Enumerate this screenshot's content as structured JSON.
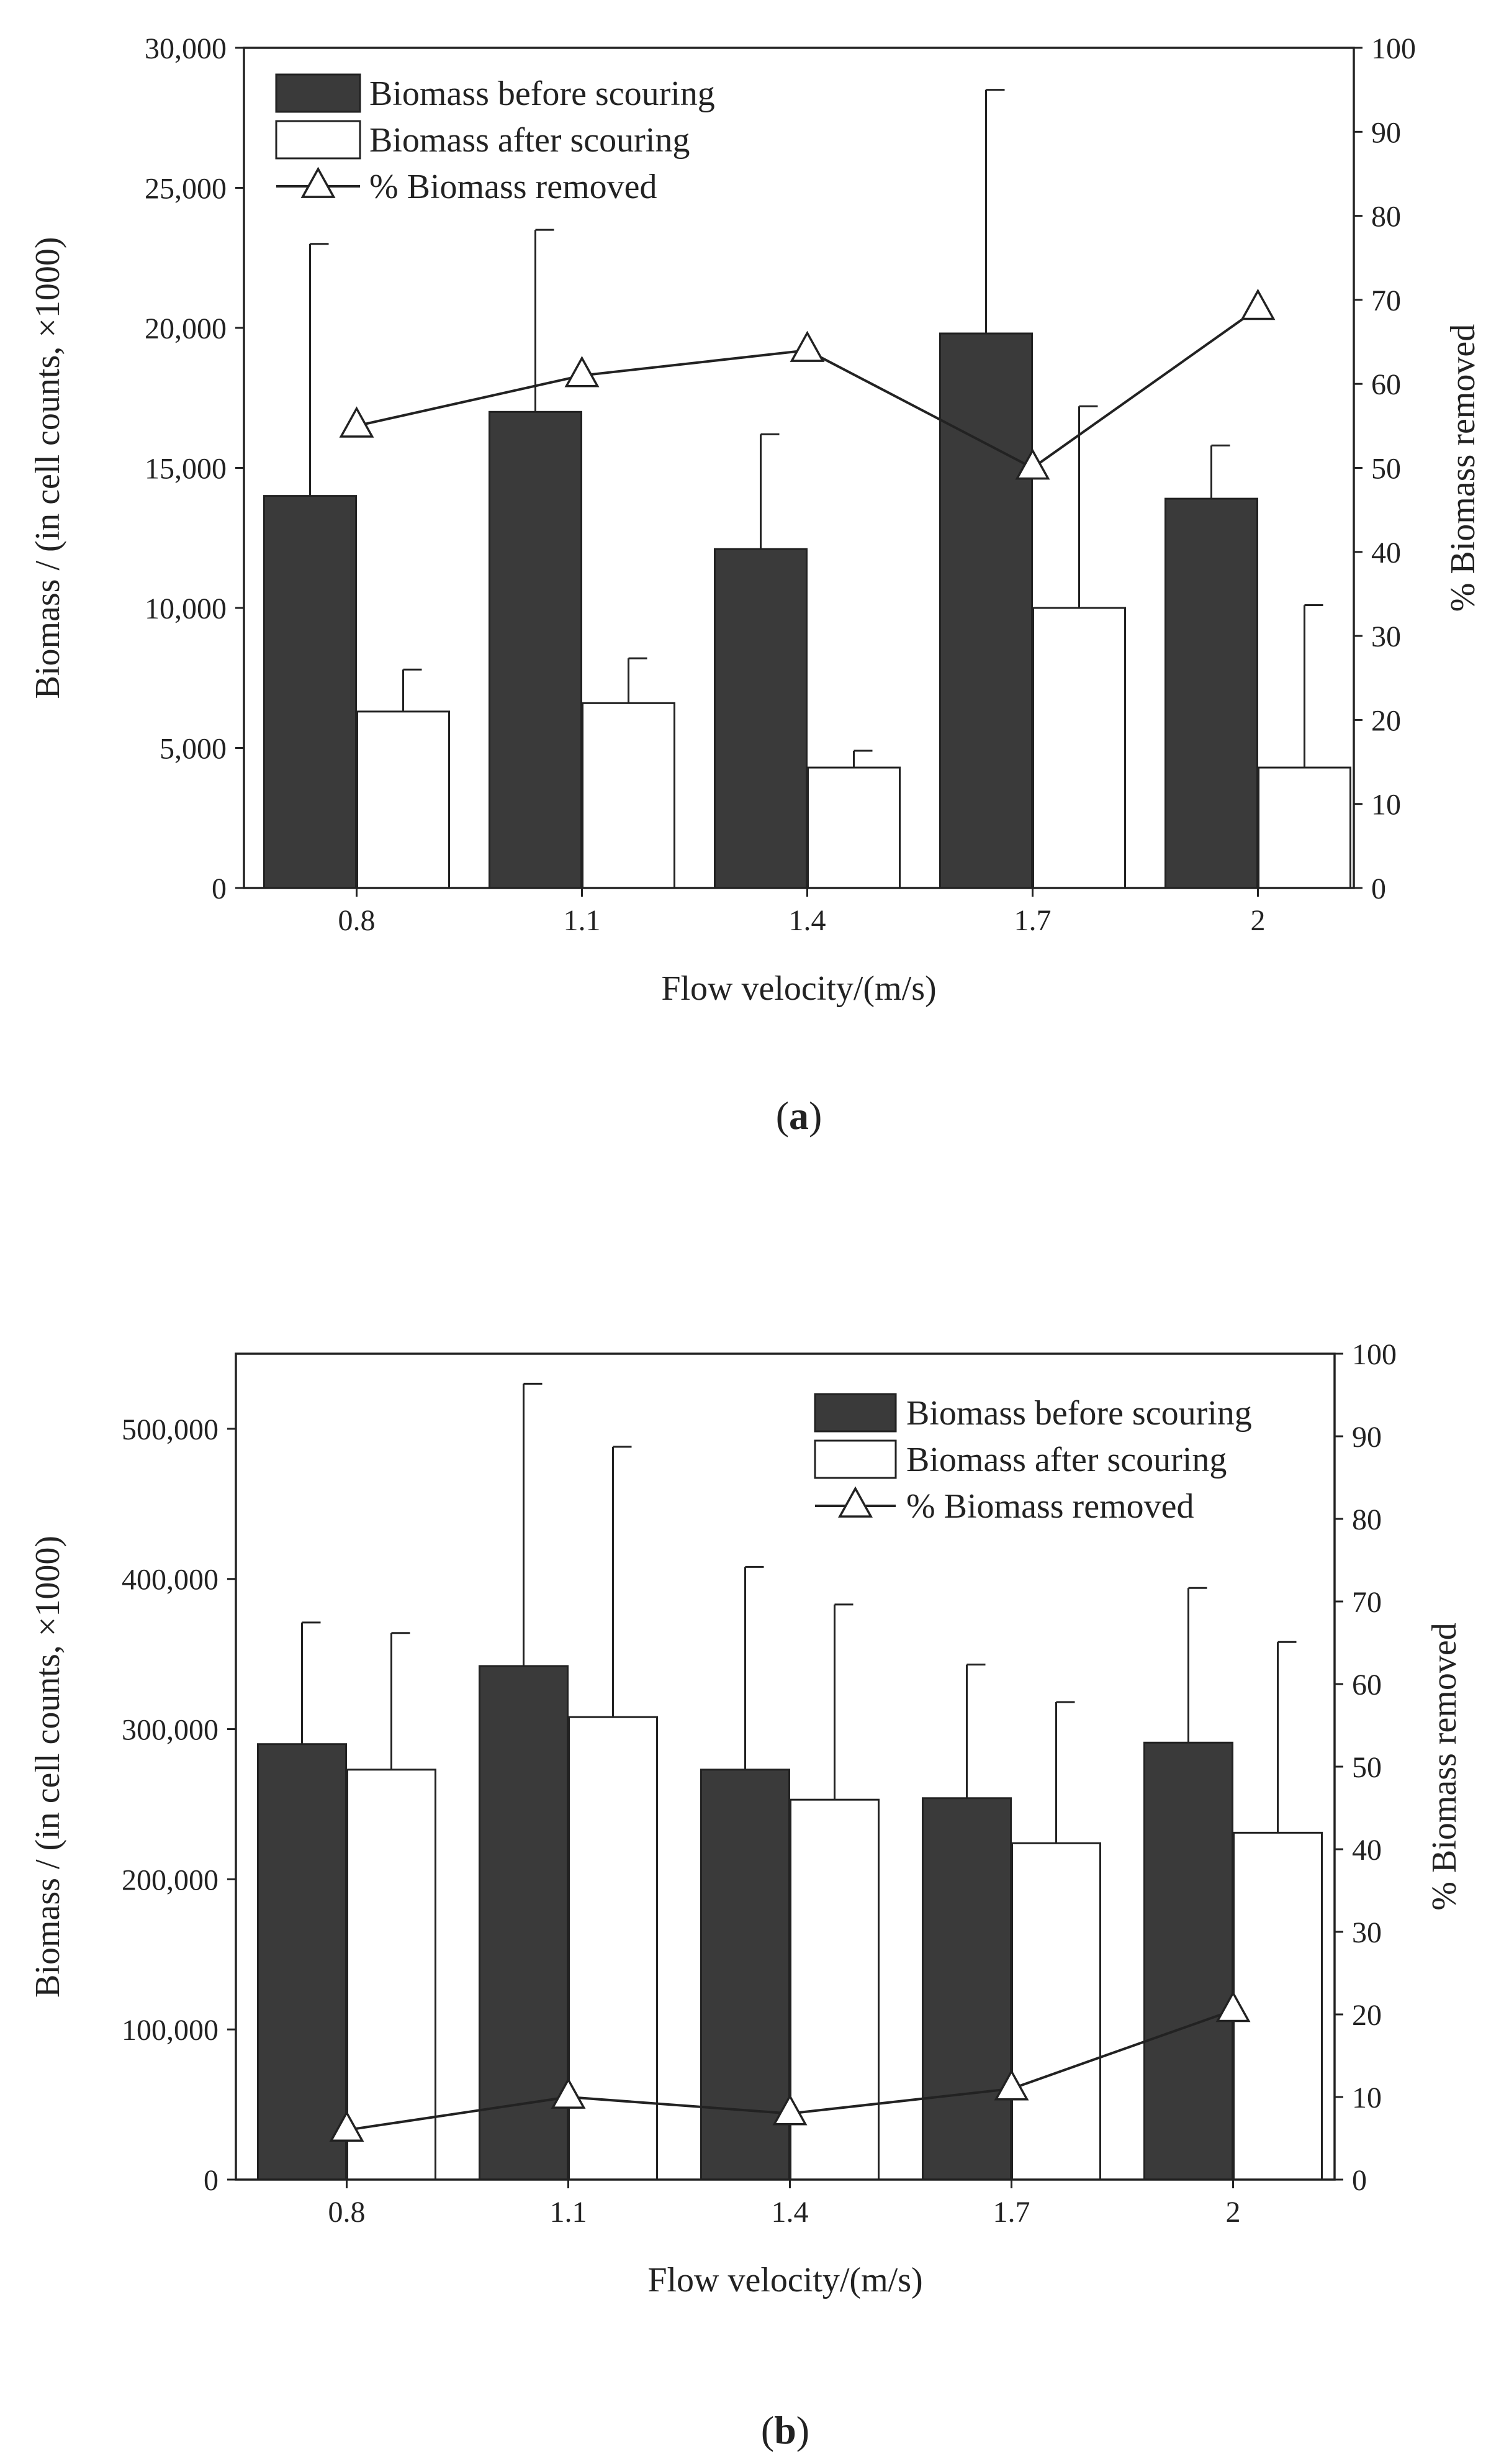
{
  "colors": {
    "before": "#3a3a3a",
    "after": "#ffffff",
    "stroke": "#222222"
  },
  "chart_data": [
    {
      "type": "bar",
      "caption": "(a)",
      "caption_letter": "a",
      "categories": [
        "0.8",
        "1.1",
        "1.4",
        "1.7",
        "2"
      ],
      "series": [
        {
          "name": "Biomass before scouring",
          "values": [
            14000,
            17000,
            12100,
            19800,
            13900
          ],
          "errors": [
            9000,
            6500,
            4100,
            8700,
            1900
          ]
        },
        {
          "name": "Biomass after scouring",
          "values": [
            6300,
            6600,
            4300,
            10000,
            4300
          ],
          "errors": [
            1500,
            1600,
            600,
            7200,
            5800
          ]
        },
        {
          "name": "% Biomass removed",
          "axis": "right",
          "values": [
            55,
            61,
            64,
            50,
            69
          ]
        }
      ],
      "legend_marker_line": "—△—",
      "xlabel": "Flow velocity/(m/s)",
      "ylabel": "Biomass / (in cell counts, ×1000)",
      "y2label": "% Biomass removed",
      "ylim": [
        0,
        30000
      ],
      "yticks": [
        0,
        5000,
        10000,
        15000,
        20000,
        25000,
        30000
      ],
      "ytick_labels": [
        "0",
        "5,000",
        "10,000",
        "15,000",
        "20,000",
        "25,000",
        "30,000"
      ],
      "y2lim": [
        0,
        100
      ],
      "y2ticks": [
        0,
        10,
        20,
        30,
        40,
        50,
        60,
        70,
        80,
        90,
        100
      ],
      "y2tick_labels": [
        "0",
        "10",
        "20",
        "30",
        "40",
        "50",
        "60",
        "70",
        "80",
        "90",
        "100"
      ],
      "legend_position": "top-left"
    },
    {
      "type": "bar",
      "caption": "(b)",
      "caption_letter": "b",
      "categories": [
        "0.8",
        "1.1",
        "1.4",
        "1.7",
        "2"
      ],
      "series": [
        {
          "name": "Biomass before scouring",
          "values": [
            290000,
            342000,
            273000,
            254000,
            291000
          ],
          "errors": [
            81000,
            188000,
            135000,
            89000,
            103000
          ]
        },
        {
          "name": "Biomass after scouring",
          "values": [
            273000,
            308000,
            253000,
            224000,
            231000
          ],
          "errors": [
            91000,
            180000,
            130000,
            94000,
            127000
          ]
        },
        {
          "name": "% Biomass removed",
          "axis": "right",
          "values": [
            6,
            10,
            8,
            11,
            20.5
          ]
        }
      ],
      "legend_marker_line": "—△—",
      "xlabel": "Flow velocity/(m/s)",
      "ylabel": "Biomass / (in cell counts, ×1000)",
      "y2label": "% Biomass removed",
      "ylim": [
        0,
        550000
      ],
      "yticks": [
        0,
        100000,
        200000,
        300000,
        400000,
        500000
      ],
      "ytick_labels": [
        "0",
        "100,000",
        "200,000",
        "300,000",
        "400,000",
        "500,000"
      ],
      "y2lim": [
        0,
        100
      ],
      "y2ticks": [
        0,
        10,
        20,
        30,
        40,
        50,
        60,
        70,
        80,
        90,
        100
      ],
      "y2tick_labels": [
        "0",
        "10",
        "20",
        "30",
        "40",
        "50",
        "60",
        "70",
        "80",
        "90",
        "100"
      ],
      "legend_position": "top-right"
    }
  ]
}
